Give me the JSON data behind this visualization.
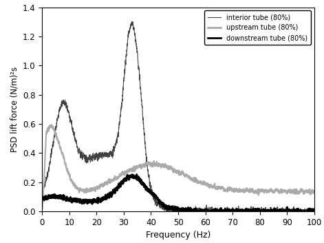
{
  "title": "",
  "xlabel": "Frequency (Hz)",
  "ylabel": "PSD lift force (N/m)²s",
  "xlim": [
    0,
    100
  ],
  "ylim": [
    0,
    1.4
  ],
  "yticks": [
    0,
    0.2,
    0.4,
    0.6,
    0.8,
    1.0,
    1.2,
    1.4
  ],
  "xticks": [
    0,
    10,
    20,
    30,
    40,
    50,
    60,
    70,
    80,
    90,
    100
  ],
  "legend": [
    {
      "label": "interior tube (80%)",
      "color": "#404040",
      "linewidth": 0.8,
      "linestyle": "-"
    },
    {
      "label": "upstream tube (80%)",
      "color": "#aaaaaa",
      "linewidth": 1.5,
      "linestyle": "-"
    },
    {
      "label": "downstream tube (80%)",
      "color": "#000000",
      "linewidth": 2.0,
      "linestyle": "-"
    }
  ],
  "background_color": "#ffffff",
  "seed": 42
}
